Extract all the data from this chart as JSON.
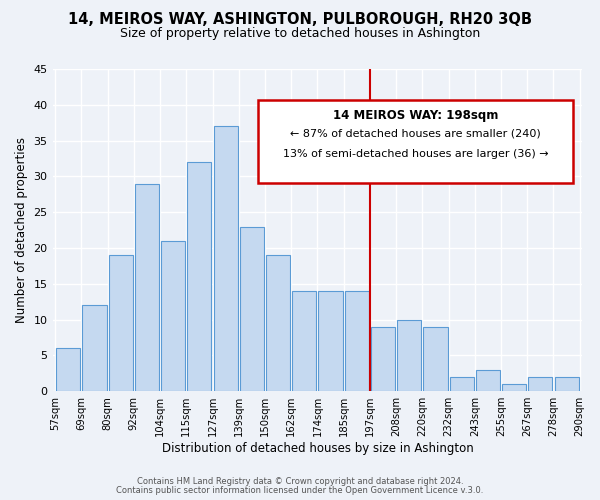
{
  "title": "14, MEIROS WAY, ASHINGTON, PULBOROUGH, RH20 3QB",
  "subtitle": "Size of property relative to detached houses in Ashington",
  "xlabel": "Distribution of detached houses by size in Ashington",
  "ylabel": "Number of detached properties",
  "bin_labels": [
    "57sqm",
    "69sqm",
    "80sqm",
    "92sqm",
    "104sqm",
    "115sqm",
    "127sqm",
    "139sqm",
    "150sqm",
    "162sqm",
    "174sqm",
    "185sqm",
    "197sqm",
    "208sqm",
    "220sqm",
    "232sqm",
    "243sqm",
    "255sqm",
    "267sqm",
    "278sqm",
    "290sqm"
  ],
  "bar_heights": [
    6,
    12,
    19,
    29,
    21,
    32,
    37,
    23,
    19,
    14,
    14,
    14,
    9,
    10,
    9,
    2,
    3,
    1,
    2,
    2
  ],
  "bar_color": "#c5d9f0",
  "bar_edge_color": "#5b9bd5",
  "highlight_line_color": "#cc0000",
  "highlight_after_bar": 12,
  "ylim": [
    0,
    45
  ],
  "yticks": [
    0,
    5,
    10,
    15,
    20,
    25,
    30,
    35,
    40,
    45
  ],
  "annotation_title": "14 MEIROS WAY: 198sqm",
  "annotation_line1": "← 87% of detached houses are smaller (240)",
  "annotation_line2": "13% of semi-detached houses are larger (36) →",
  "footer_line1": "Contains HM Land Registry data © Crown copyright and database right 2024.",
  "footer_line2": "Contains public sector information licensed under the Open Government Licence v.3.0.",
  "background_color": "#eef2f8"
}
